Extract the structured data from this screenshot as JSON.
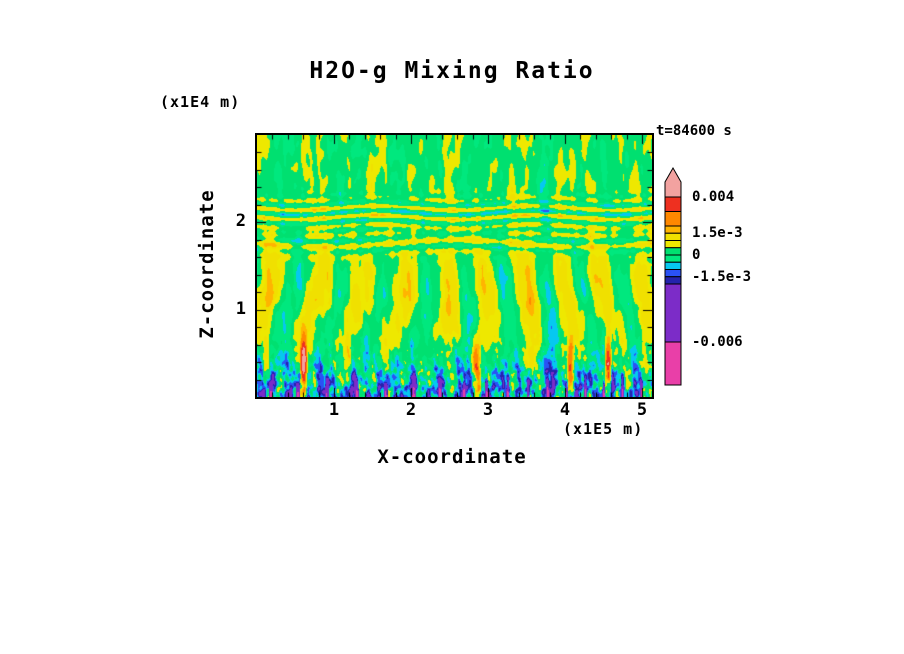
{
  "chart_data": {
    "type": "heatmap",
    "title": "H2O-g Mixing Ratio",
    "timestamp": "t=84600 s",
    "xlabel": "X-coordinate",
    "x_units": "(x1E5 m)",
    "ylabel": "Z-coordinate",
    "y_units": "(x1E4 m)",
    "x_axis": {
      "min": 0,
      "max": 5.13,
      "major_ticks": [
        1,
        2,
        3,
        4,
        5
      ],
      "tick_labels": [
        "1",
        "2",
        "3",
        "4",
        "5"
      ],
      "minor_step": 0.2
    },
    "y_axis": {
      "min": 0,
      "max": 3.0,
      "major_ticks": [
        1,
        2
      ],
      "tick_labels": [
        "1",
        "2"
      ],
      "minor_step": 0.2
    },
    "levels": [
      -0.006,
      -0.002,
      -0.0015,
      -0.001,
      -0.0005,
      0,
      0.0005,
      0.001,
      0.0015,
      0.002,
      0.003,
      0.004
    ],
    "colors": [
      "#E93FA8",
      "#7C2CC8",
      "#2423AC",
      "#2A52F5",
      "#06C8F0",
      "#00E87E",
      "#00E070",
      "#EEE800",
      "#F0E000",
      "#FFB400",
      "#FF8800",
      "#EE3020",
      "#F2A2A0"
    ],
    "colorbar_labels": [
      {
        "text": "0.004",
        "value": 0.004
      },
      {
        "text": "1.5e-3",
        "value": 0.0015
      },
      {
        "text": "0",
        "value": 0
      },
      {
        "text": "-1.5e-3",
        "value": -0.0015
      },
      {
        "text": "-0.006",
        "value": -0.006
      }
    ],
    "legend_position": "right",
    "grid": false
  }
}
